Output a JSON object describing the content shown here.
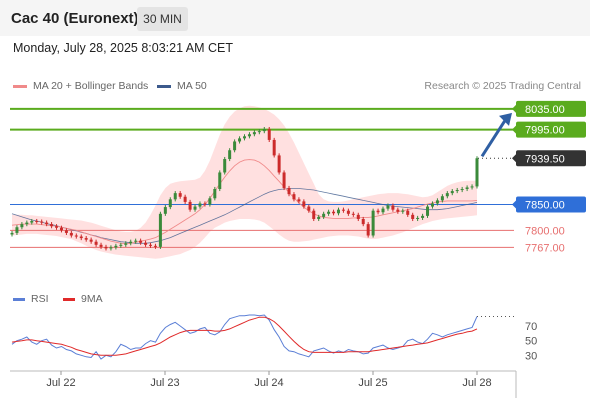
{
  "header": {
    "title": "Cac 40 (Euronext)",
    "timeframe": "30 MIN",
    "datetime": "Monday, July 28, 2025 8:03:21 AM CET"
  },
  "legend": {
    "ma20": "MA 20 + Bollinger Bands",
    "ma50": "MA 50",
    "credit": "Research © 2025 Trading Central",
    "rsi": "RSI",
    "rsi_ma": "9MA"
  },
  "colors": {
    "resistance": "#5aab1e",
    "support": "#e76f6f",
    "pivot": "#2f6fd8",
    "last": "#333333",
    "up": "#3a8a3a",
    "down": "#cc2b2b",
    "ma20": "#f08a8a",
    "ma50": "#3c5a8c",
    "band": "#ffd6d6",
    "rsi": "#5b7fd6",
    "rsi_ma": "#e02a2a",
    "arrow": "#2f5fa3"
  },
  "chart_data": {
    "type": "candlestick",
    "x_ticks": [
      "Jul 22",
      "Jul 23",
      "Jul 24",
      "Jul 25",
      "Jul 28"
    ],
    "ylim": [
      7700,
      8060
    ],
    "levels": [
      {
        "value": 8035.0,
        "label": "8035.00",
        "kind": "resistance"
      },
      {
        "value": 7995.0,
        "label": "7995.00",
        "kind": "resistance"
      },
      {
        "value": 7939.5,
        "label": "7939.50",
        "kind": "last"
      },
      {
        "value": 7850.0,
        "label": "7850.00",
        "kind": "pivot"
      },
      {
        "value": 7800.0,
        "label": "7800.00",
        "kind": "support"
      },
      {
        "value": 7767.0,
        "label": "7767.00",
        "kind": "support"
      }
    ],
    "close": [
      7795,
      7806,
      7812,
      7815,
      7818,
      7817,
      7815,
      7812,
      7808,
      7805,
      7800,
      7795,
      7790,
      7788,
      7785,
      7782,
      7778,
      7772,
      7768,
      7765,
      7767,
      7770,
      7772,
      7775,
      7778,
      7780,
      7776,
      7772,
      7770,
      7768,
      7832,
      7845,
      7860,
      7872,
      7865,
      7855,
      7840,
      7846,
      7852,
      7850,
      7862,
      7880,
      7912,
      7938,
      7955,
      7972,
      7978,
      7982,
      7986,
      7990,
      7992,
      7996,
      7975,
      7945,
      7912,
      7882,
      7870,
      7860,
      7856,
      7846,
      7838,
      7822,
      7826,
      7832,
      7836,
      7833,
      7840,
      7838,
      7832,
      7830,
      7822,
      7812,
      7790,
      7838,
      7835,
      7842,
      7848,
      7840,
      7836,
      7838,
      7830,
      7822,
      7824,
      7828,
      7846,
      7852,
      7858,
      7866,
      7872,
      7876,
      7878,
      7880,
      7883,
      7885,
      7939.5
    ],
    "ma20": [
      7810,
      7811,
      7812,
      7812,
      7812,
      7812,
      7811,
      7810,
      7809,
      7808,
      7806,
      7804,
      7802,
      7800,
      7797,
      7794,
      7791,
      7788,
      7785,
      7782,
      7779,
      7777,
      7775,
      7774,
      7775,
      7777,
      7779,
      7781,
      7783,
      7786,
      7791,
      7796,
      7802,
      7808,
      7814,
      7820,
      7826,
      7832,
      7840,
      7850,
      7862,
      7876,
      7890,
      7903,
      7915,
      7925,
      7932,
      7936,
      7937,
      7936,
      7932,
      7925,
      7916,
      7905,
      7895,
      7884,
      7873,
      7863,
      7853,
      7845,
      7838,
      7832,
      7828,
      7825,
      7824,
      7823,
      7823,
      7823,
      7823,
      7824,
      7824,
      7825,
      7825,
      7826,
      7828,
      7830,
      7832,
      7834,
      7836,
      7838,
      7840,
      7842,
      7845,
      7848,
      7851,
      7853,
      7855,
      7856,
      7857,
      7857,
      7857,
      7857,
      7857,
      7857,
      7858
    ],
    "bb_upper": [
      7830,
      7830,
      7830,
      7829,
      7829,
      7828,
      7827,
      7826,
      7825,
      7824,
      7823,
      7822,
      7821,
      7820,
      7819,
      7817,
      7815,
      7812,
      7809,
      7806,
      7803,
      7800,
      7798,
      7797,
      7797,
      7799,
      7805,
      7815,
      7830,
      7848,
      7868,
      7882,
      7890,
      7893,
      7895,
      7896,
      7897,
      7898,
      7902,
      7915,
      7935,
      7960,
      7985,
      8005,
      8020,
      8030,
      8036,
      8040,
      8041,
      8040,
      8038,
      8035,
      8030,
      8024,
      8015,
      8003,
      7988,
      7970,
      7950,
      7930,
      7910,
      7890,
      7870,
      7860,
      7856,
      7855,
      7855,
      7856,
      7858,
      7860,
      7862,
      7864,
      7866,
      7868,
      7870,
      7871,
      7872,
      7872,
      7872,
      7871,
      7870,
      7868,
      7866,
      7864,
      7865,
      7868,
      7874,
      7880,
      7886,
      7890,
      7893,
      7895,
      7896,
      7896,
      7896
    ],
    "bb_lower": [
      7790,
      7791,
      7792,
      7793,
      7793,
      7793,
      7792,
      7791,
      7790,
      7789,
      7787,
      7785,
      7783,
      7779,
      7775,
      7770,
      7766,
      7762,
      7759,
      7757,
      7755,
      7753,
      7752,
      7751,
      7750,
      7749,
      7748,
      7747,
      7746,
      7745,
      7746,
      7748,
      7750,
      7752,
      7754,
      7758,
      7762,
      7768,
      7776,
      7786,
      7797,
      7805,
      7810,
      7815,
      7818,
      7820,
      7822,
      7822,
      7822,
      7821,
      7819,
      7815,
      7808,
      7800,
      7792,
      7785,
      7780,
      7778,
      7778,
      7779,
      7780,
      7782,
      7784,
      7786,
      7788,
      7789,
      7790,
      7790,
      7790,
      7789,
      7788,
      7786,
      7784,
      7783,
      7784,
      7786,
      7788,
      7790,
      7793,
      7796,
      7800,
      7804,
      7808,
      7812,
      7815,
      7818,
      7820,
      7822,
      7823,
      7824,
      7825,
      7826,
      7827,
      7828,
      7829
    ],
    "ma50": [
      7832,
      7829,
      7826,
      7823,
      7820,
      7818,
      7816,
      7813,
      7811,
      7809,
      7806,
      7804,
      7801,
      7799,
      7796,
      7794,
      7791,
      7789,
      7786,
      7784,
      7782,
      7780,
      7778,
      7777,
      7776,
      7775,
      7775,
      7775,
      7776,
      7778,
      7780,
      7783,
      7786,
      7790,
      7794,
      7798,
      7802,
      7806,
      7810,
      7814,
      7818,
      7822,
      7826,
      7830,
      7835,
      7840,
      7845,
      7850,
      7855,
      7860,
      7865,
      7870,
      7874,
      7877,
      7879,
      7880,
      7881,
      7881,
      7881,
      7880,
      7879,
      7878,
      7876,
      7874,
      7872,
      7870,
      7868,
      7866,
      7864,
      7862,
      7860,
      7858,
      7856,
      7854,
      7852,
      7850,
      7848,
      7847,
      7846,
      7845,
      7844,
      7843,
      7842,
      7841,
      7840,
      7840,
      7840,
      7841,
      7842,
      7844,
      7846,
      7848,
      7850,
      7852,
      7854
    ],
    "rsi_ticks": [
      70,
      50,
      30
    ],
    "rsi_ylim": [
      10,
      100
    ],
    "rsi": [
      45,
      50,
      52,
      55,
      48,
      45,
      50,
      52,
      44,
      40,
      42,
      38,
      36,
      32,
      30,
      28,
      27,
      35,
      25,
      30,
      28,
      35,
      45,
      42,
      38,
      40,
      40,
      46,
      50,
      48,
      60,
      68,
      72,
      75,
      70,
      65,
      60,
      62,
      66,
      68,
      60,
      58,
      62,
      72,
      80,
      82,
      84,
      84,
      85,
      85,
      84,
      85,
      78,
      65,
      55,
      42,
      36,
      35,
      32,
      30,
      28,
      36,
      38,
      40,
      36,
      33,
      36,
      34,
      38,
      36,
      35,
      32,
      33,
      40,
      42,
      44,
      40,
      38,
      40,
      42,
      50,
      52,
      48,
      46,
      52,
      60,
      58,
      55,
      58,
      60,
      62,
      64,
      66,
      68,
      83
    ],
    "rsi_ma": [
      48,
      49,
      50,
      51,
      51,
      50,
      49,
      48,
      47,
      46,
      45,
      43,
      41,
      38,
      36,
      34,
      32,
      31,
      30,
      30,
      30,
      30,
      31,
      32,
      34,
      36,
      38,
      40,
      42,
      44,
      47,
      51,
      55,
      58,
      61,
      63,
      64,
      64,
      64,
      64,
      64,
      63,
      63,
      64,
      66,
      69,
      72,
      75,
      78,
      80,
      82,
      82,
      80,
      76,
      70,
      63,
      56,
      49,
      43,
      38,
      35,
      34,
      34,
      34,
      34,
      34,
      34,
      34,
      35,
      35,
      35,
      35,
      35,
      36,
      37,
      38,
      39,
      40,
      41,
      42,
      43,
      44,
      45,
      46,
      47,
      49,
      51,
      53,
      55,
      57,
      59,
      60,
      62,
      63,
      66
    ],
    "forecast_target": 8035.0
  }
}
